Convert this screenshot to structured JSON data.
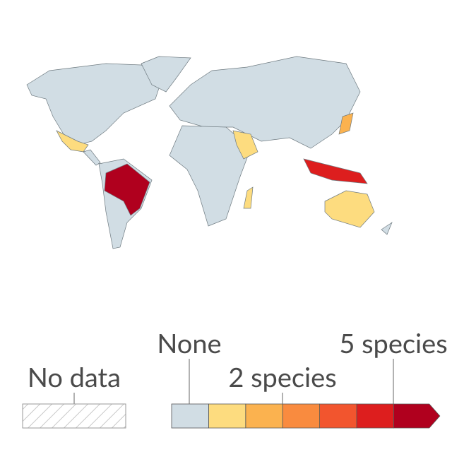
{
  "legend": {
    "no_data": "No data",
    "no_data_color": "#e8e8e8",
    "labels": [
      "None",
      "2 species",
      "5 species"
    ],
    "colors": [
      "#d1dde4",
      "#fddc7f",
      "#fbb24f",
      "#f98b3f",
      "#f2552e",
      "#dd1e1e",
      "#b0001e"
    ]
  }
}
